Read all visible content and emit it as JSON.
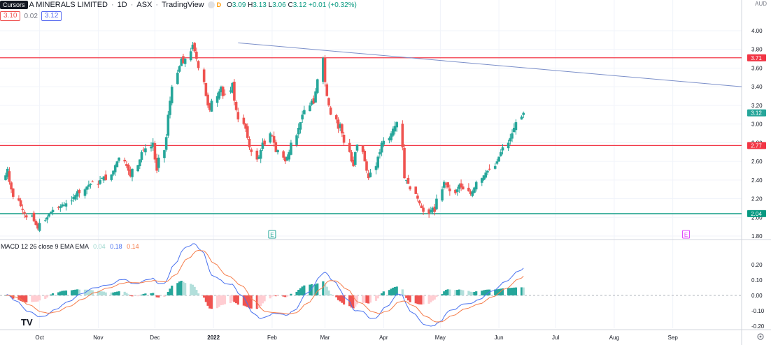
{
  "header": {
    "tooltip_label": "Cursors",
    "symbol_name": "A MINERALS LIMITED",
    "interval": "1D",
    "exchange": "ASX",
    "source": "TradingView",
    "d_badge": "D",
    "open_label": "O",
    "open": "3.09",
    "high_label": "H",
    "high": "3.13",
    "low_label": "L",
    "low": "3.06",
    "close_label": "C",
    "close": "3.12",
    "change": "+0.01 (+0.32%)",
    "bid": "3.10",
    "spread": "0.02",
    "ask": "3.12",
    "axis_currency": "AUD"
  },
  "indicator": {
    "name": "MACD 12 26 close 9 EMA EMA",
    "hist_value": "0.04",
    "macd_value": "0.18",
    "signal_value": "0.14"
  },
  "colors": {
    "up": "#26a69a",
    "down": "#ef5350",
    "resistance": "#f23645",
    "support": "#089981",
    "trend": "#7b8fc9",
    "macd_line": "#4a72ef",
    "signal_line": "#f57c4a",
    "hist_up": "#26a69a",
    "hist_up_light": "#b2dfdb",
    "hist_down": "#ef5350",
    "hist_down_light": "#ffcdd2"
  },
  "chart_data": [
    {
      "type": "candlestick",
      "ylim": [
        1.8,
        4.0
      ],
      "yticks": [
        "1.80",
        "2.00",
        "2.20",
        "2.40",
        "2.60",
        "2.80",
        "3.00",
        "3.20",
        "3.40",
        "3.60",
        "3.80",
        "4.00"
      ],
      "xticks": [
        "Oct",
        "Nov",
        "Dec",
        "2022",
        "Feb",
        "Mar",
        "Apr",
        "May",
        "Jun",
        "Jul",
        "Aug",
        "Sep"
      ],
      "x_start": "2021-09-13",
      "x_end": "2022-09-30",
      "horizontal_lines": [
        {
          "value": 3.71,
          "label": "3.71",
          "color": "resistance"
        },
        {
          "value": 2.77,
          "label": "2.77",
          "color": "resistance"
        },
        {
          "value": 2.04,
          "label": "2.04",
          "color": "support"
        }
      ],
      "last_price": {
        "value": 3.12,
        "label": "3.12"
      },
      "trendline": [
        {
          "date": "2022-01-14",
          "value": 3.87
        },
        {
          "date": "2022-09-30",
          "value": 3.4
        }
      ],
      "earnings_markers": [
        {
          "date": "2022-02-01",
          "label": "E"
        },
        {
          "date": "2022-09-08",
          "label": "E"
        }
      ],
      "closes": [
        2.45,
        2.52,
        2.38,
        2.3,
        2.22,
        2.18,
        2.12,
        2.08,
        2.04,
        2.0,
        2.02,
        1.96,
        1.92,
        1.88,
        1.94,
        1.97,
        2.0,
        2.04,
        2.06,
        2.08,
        2.1,
        2.12,
        2.14,
        2.13,
        2.15,
        2.18,
        2.22,
        2.24,
        2.28,
        2.26,
        2.3,
        2.33,
        2.35,
        2.36,
        2.38,
        2.35,
        2.4,
        2.42,
        2.44,
        2.4,
        2.46,
        2.5,
        2.56,
        2.6,
        2.64,
        2.6,
        2.55,
        2.5,
        2.44,
        2.52,
        2.56,
        2.62,
        2.7,
        2.72,
        2.74,
        2.76,
        2.8,
        2.62,
        2.5,
        2.64,
        2.72,
        2.86,
        3.1,
        3.25,
        3.4,
        3.55,
        3.62,
        3.7,
        3.65,
        3.7,
        3.78,
        3.85,
        3.78,
        3.7,
        3.6,
        3.45,
        3.3,
        3.2,
        3.15,
        3.25,
        3.3,
        3.35,
        3.4,
        3.3,
        3.32,
        3.36,
        3.44,
        3.25,
        3.15,
        3.05,
        3.0,
        2.95,
        2.85,
        2.75,
        2.7,
        2.62,
        2.65,
        2.72,
        2.8,
        2.78,
        2.9,
        2.88,
        2.8,
        2.7,
        2.72,
        2.64,
        2.6,
        2.65,
        2.7,
        2.8,
        2.88,
        2.96,
        3.02,
        3.1,
        3.15,
        3.2,
        3.25,
        3.22,
        3.35,
        3.48,
        3.71,
        3.45,
        3.3,
        3.2,
        3.1,
        3.05,
        2.95,
        3.0,
        2.9,
        2.8,
        2.7,
        2.6,
        2.55,
        2.7,
        2.78,
        2.7,
        2.6,
        2.5,
        2.42,
        2.48,
        2.55,
        2.65,
        2.7,
        2.8,
        2.82,
        2.85,
        2.9,
        2.95,
        2.98,
        3.02,
        2.75,
        2.42,
        2.4,
        2.36,
        2.3,
        2.25,
        2.2,
        2.15,
        2.1,
        2.06,
        2.04,
        2.08,
        2.1,
        2.06,
        2.2,
        2.3,
        2.38,
        2.35,
        2.32,
        2.28,
        2.26,
        2.3,
        2.35,
        2.32,
        2.3,
        2.28,
        2.25,
        2.28,
        2.32,
        2.38,
        2.42,
        2.45,
        2.48,
        2.5,
        2.52,
        2.55,
        2.6,
        2.65,
        2.7,
        2.75,
        2.8,
        2.85,
        2.9,
        2.96,
        3.02,
        3.08,
        3.12
      ]
    },
    {
      "type": "line",
      "title": "MACD 12 26 close 9 EMA EMA",
      "ylim": [
        -0.2,
        0.3
      ],
      "yticks": [
        "-0.20",
        "-0.10",
        "0.00",
        "0.10",
        "0.20"
      ]
    }
  ]
}
